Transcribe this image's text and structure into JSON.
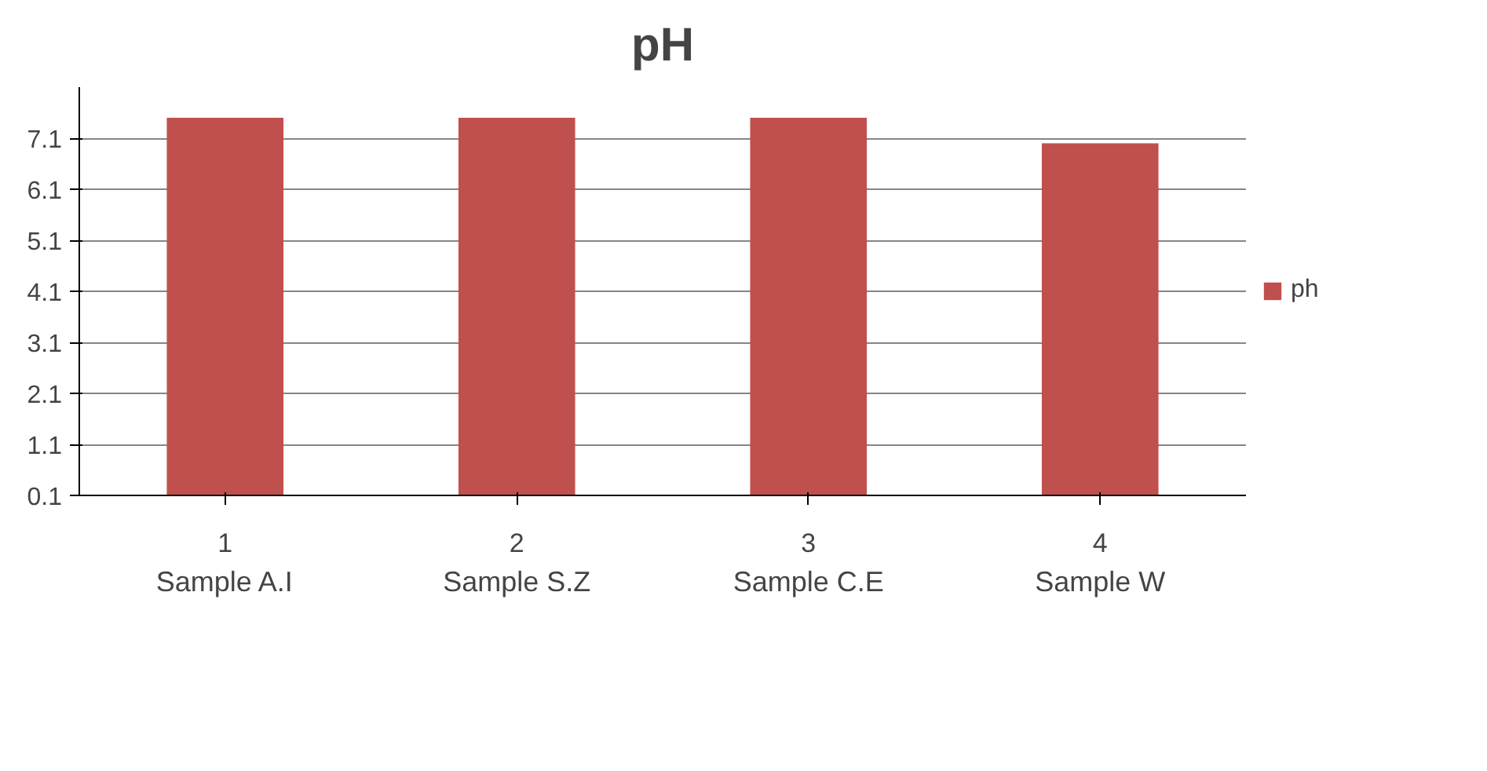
{
  "chart_data": {
    "type": "bar",
    "title": "pH",
    "categories": [
      "1",
      "2",
      "3",
      "4"
    ],
    "series": [
      {
        "name": "ph",
        "color": "#c0504d",
        "values": [
          7.5,
          7.5,
          7.5,
          7.0
        ]
      }
    ],
    "ylim": [
      0.1,
      8.1
    ],
    "yticks": [
      0.1,
      1.1,
      2.1,
      3.1,
      4.1,
      5.1,
      6.1,
      7.1
    ],
    "grid": "y",
    "legend": "right",
    "annotations": [
      "Sample A.I",
      "Sample S.Z",
      "Sample C.E",
      "Sample W"
    ]
  }
}
